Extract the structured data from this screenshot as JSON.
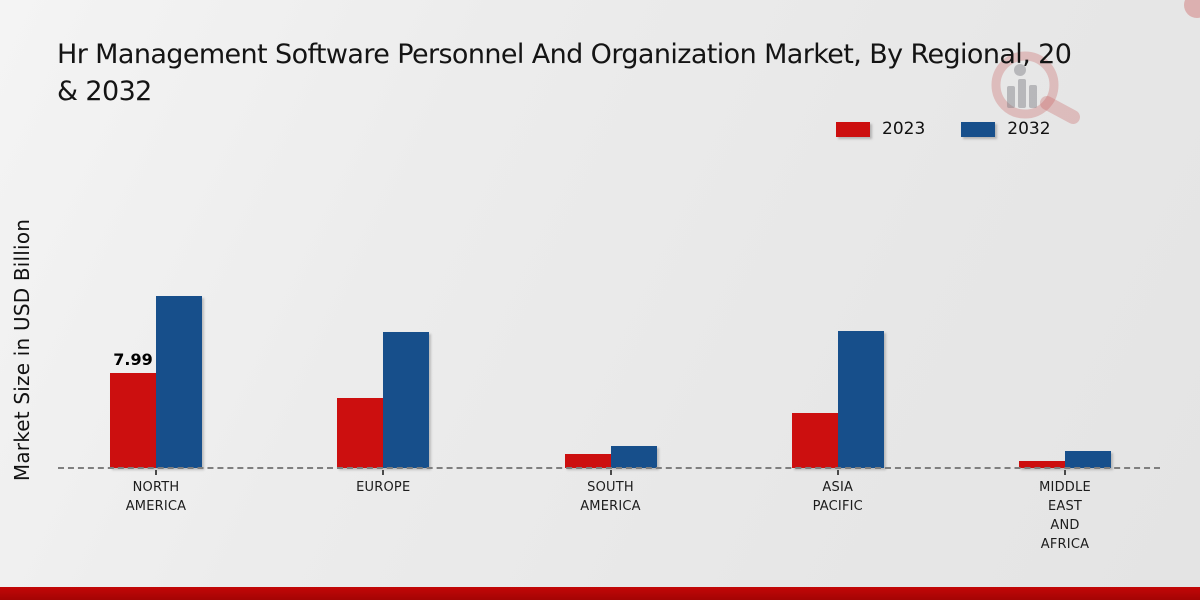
{
  "title": {
    "line1": "Hr Management Software Personnel And Organization Market, By Regional, 20",
    "line2": "& 2032"
  },
  "y_axis": {
    "label": "Market Size in USD Billion"
  },
  "legend": {
    "items": [
      {
        "label": "2023",
        "color": "#cc0f0f"
      },
      {
        "label": "2032",
        "color": "#174f8b"
      }
    ]
  },
  "chart_data": {
    "type": "bar",
    "title": "Hr Management Software Personnel And Organization Market, By Regional, 2023 & 2032",
    "categories": [
      "NORTH AMERICA",
      "EUROPE",
      "SOUTH AMERICA",
      "ASIA PACIFIC",
      "MIDDLE EAST AND AFRICA"
    ],
    "series": [
      {
        "name": "2023",
        "color": "#cc0f0f",
        "values": [
          7.99,
          5.9,
          1.2,
          4.6,
          0.6
        ]
      },
      {
        "name": "2032",
        "color": "#174f8b",
        "values": [
          14.5,
          11.4,
          1.85,
          11.5,
          1.4
        ]
      }
    ],
    "xlabel": "",
    "ylabel": "Market Size in USD Billion",
    "ylim": [
      0,
      16
    ],
    "grid": false,
    "legend_position": "top-right",
    "baseline_style": "dashed",
    "annotations": [
      {
        "category": "NORTH AMERICA",
        "series": "2023",
        "text": "7.99"
      }
    ]
  },
  "colors": {
    "footer_band": "#b30505",
    "page_background": "#ebebeb",
    "axis_line": "#7f7f7f"
  }
}
